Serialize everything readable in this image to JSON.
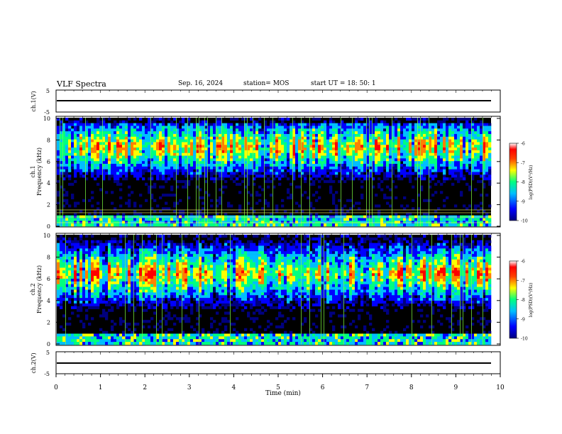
{
  "header": {
    "title": "VLF Spectra",
    "date": "Sep. 16, 2024",
    "station": "station= MOS",
    "start": "start  UT =   18: 50: 1"
  },
  "chart_data": [
    {
      "type": "line",
      "panel": "ch1-waveform",
      "ylabel": "ch.1(V)",
      "ylim": [
        -5,
        5
      ],
      "yticks": [
        "5",
        "-5"
      ],
      "x": [
        0,
        10
      ],
      "values": [
        0,
        0
      ]
    },
    {
      "type": "heatmap",
      "panel": "ch1-spectrogram",
      "ylabel_lines": [
        "ch.1",
        "Frequency  (kHz)"
      ],
      "ylim": [
        0,
        10
      ],
      "yticks": [
        "0",
        "2",
        "4",
        "6",
        "8",
        "10"
      ],
      "xlim": [
        0,
        10
      ],
      "colorbar": {
        "label": "log(PSD)(V²/Hz)",
        "ticks": [
          "-6",
          "-7",
          "-8",
          "-9",
          "-10"
        ],
        "range": [
          -10,
          -6
        ]
      }
    },
    {
      "type": "heatmap",
      "panel": "ch2-spectrogram",
      "ylabel_lines": [
        "ch.2",
        "Frequency  (kHz)"
      ],
      "ylim": [
        0,
        10
      ],
      "yticks": [
        "0",
        "2",
        "4",
        "6",
        "8",
        "10"
      ],
      "xlim": [
        0,
        10
      ],
      "colorbar": {
        "label": "log(PSD)(V²/Hz)",
        "ticks": [
          "-6",
          "-7",
          "-8",
          "-9",
          "-10"
        ],
        "range": [
          -10,
          -6
        ]
      }
    },
    {
      "type": "line",
      "panel": "ch2-waveform",
      "ylabel": "ch.2(V)",
      "ylim": [
        -5,
        5
      ],
      "yticks": [
        "5",
        "-5"
      ],
      "x": [
        0,
        10
      ],
      "values": [
        0,
        0
      ]
    }
  ],
  "xaxis": {
    "label": "Time  (min)",
    "ticks": [
      "0",
      "1",
      "2",
      "3",
      "4",
      "5",
      "6",
      "7",
      "8",
      "9",
      "10"
    ]
  },
  "colors": {
    "background": "#000000",
    "colormap": [
      "#00007f",
      "#0000ff",
      "#00bfff",
      "#00ff80",
      "#ffff00",
      "#ff8000",
      "#ff0000",
      "#ffffff"
    ]
  }
}
